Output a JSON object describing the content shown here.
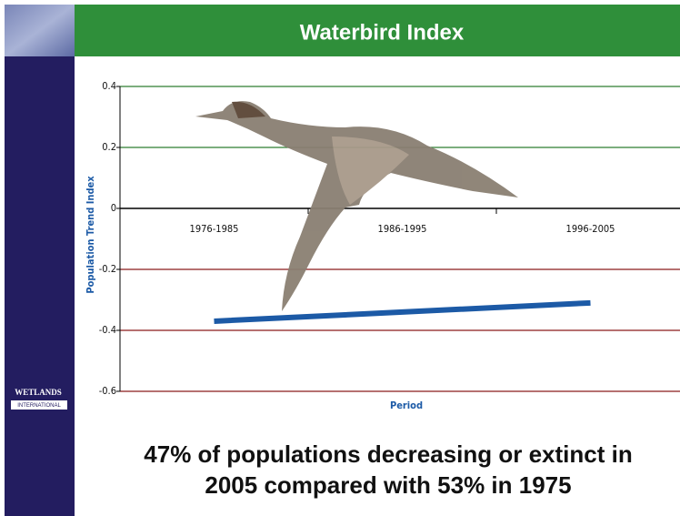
{
  "header": {
    "title": "Waterbird Index"
  },
  "logo": {
    "name": "WETLANDS",
    "subtitle": "INTERNATIONAL"
  },
  "chart_data": {
    "type": "line",
    "categories": [
      "1976-1985",
      "1986-1995",
      "1996-2005"
    ],
    "series": [
      {
        "name": "Waterbird Index",
        "color": "#1c5aa6",
        "values": [
          -0.37,
          -0.34,
          -0.31
        ]
      }
    ],
    "ylim": [
      -0.6,
      0.4
    ],
    "yticks": [
      -0.6,
      -0.4,
      -0.2,
      0,
      0.2,
      0.4
    ],
    "y_label": "Population Trend Index",
    "x_label": "Period",
    "grid": true
  },
  "caption": {
    "lines": [
      "47% of populations decreasing or extinct in",
      "2005 compared with 53% in 1975"
    ]
  }
}
